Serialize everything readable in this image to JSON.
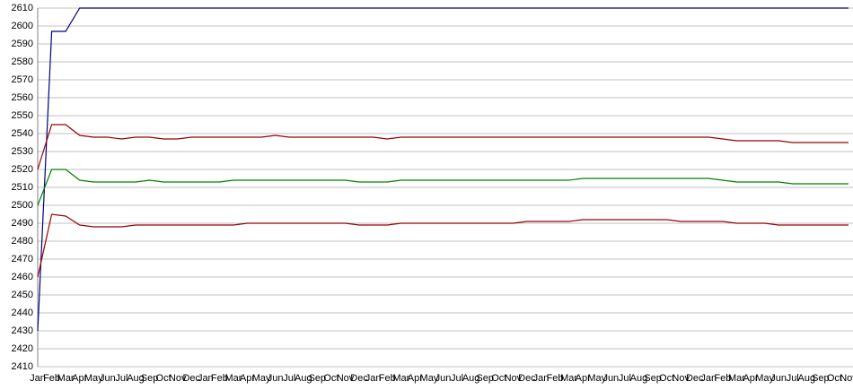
{
  "chart_data": {
    "type": "line",
    "categories": [
      "Jan",
      "Feb",
      "Mar",
      "Apr",
      "May",
      "Jun",
      "Jul",
      "Aug",
      "Sep",
      "Oct",
      "Nov",
      "Dec",
      "Jan",
      "Feb",
      "Mar",
      "Apr",
      "May",
      "Jun",
      "Jul",
      "Aug",
      "Sep",
      "Oct",
      "Nov",
      "Dec",
      "Jan",
      "Feb",
      "Mar",
      "Apr",
      "May",
      "Jun",
      "Jul",
      "Aug",
      "Sep",
      "Oct",
      "Nov",
      "Dec",
      "Jan",
      "Feb",
      "Mar",
      "Apr",
      "May",
      "Jun",
      "Jul",
      "Aug",
      "Sep",
      "Oct",
      "Nov",
      "Dec",
      "Jan",
      "Feb",
      "Mar",
      "Apr",
      "May",
      "Jun",
      "Jul",
      "Aug",
      "Sep",
      "Oct",
      "Nov"
    ],
    "series": [
      {
        "color": "#000080",
        "values": [
          2430,
          2597,
          2597,
          2610,
          2610,
          2610,
          2610,
          2610,
          2610,
          2610,
          2610,
          2610,
          2610,
          2610,
          2610,
          2610,
          2610,
          2610,
          2610,
          2610,
          2610,
          2610,
          2610,
          2610,
          2610,
          2610,
          2610,
          2610,
          2610,
          2610,
          2610,
          2610,
          2610,
          2610,
          2610,
          2610,
          2610,
          2610,
          2610,
          2610,
          2610,
          2610,
          2610,
          2610,
          2610,
          2610,
          2610,
          2610,
          2610,
          2610,
          2610,
          2610,
          2610,
          2610,
          2610,
          2610,
          2610,
          2610,
          2610
        ]
      },
      {
        "color": "#990000",
        "values": [
          2520,
          2545,
          2545,
          2539,
          2538,
          2538,
          2537,
          2538,
          2538,
          2537,
          2537,
          2538,
          2538,
          2538,
          2538,
          2538,
          2538,
          2539,
          2538,
          2538,
          2538,
          2538,
          2538,
          2538,
          2538,
          2537,
          2538,
          2538,
          2538,
          2538,
          2538,
          2538,
          2538,
          2538,
          2538,
          2538,
          2538,
          2538,
          2538,
          2538,
          2538,
          2538,
          2538,
          2538,
          2538,
          2538,
          2538,
          2538,
          2538,
          2537,
          2536,
          2536,
          2536,
          2536,
          2535,
          2535,
          2535,
          2535,
          2535
        ]
      },
      {
        "color": "#008000",
        "values": [
          2500,
          2520,
          2520,
          2514,
          2513,
          2513,
          2513,
          2513,
          2514,
          2513,
          2513,
          2513,
          2513,
          2513,
          2514,
          2514,
          2514,
          2514,
          2514,
          2514,
          2514,
          2514,
          2514,
          2513,
          2513,
          2513,
          2514,
          2514,
          2514,
          2514,
          2514,
          2514,
          2514,
          2514,
          2514,
          2514,
          2514,
          2514,
          2514,
          2515,
          2515,
          2515,
          2515,
          2515,
          2515,
          2515,
          2515,
          2515,
          2515,
          2514,
          2513,
          2513,
          2513,
          2513,
          2512,
          2512,
          2512,
          2512,
          2512
        ]
      },
      {
        "color": "#990000",
        "values": [
          2460,
          2495,
          2494,
          2489,
          2488,
          2488,
          2488,
          2489,
          2489,
          2489,
          2489,
          2489,
          2489,
          2489,
          2489,
          2490,
          2490,
          2490,
          2490,
          2490,
          2490,
          2490,
          2490,
          2489,
          2489,
          2489,
          2490,
          2490,
          2490,
          2490,
          2490,
          2490,
          2490,
          2490,
          2490,
          2491,
          2491,
          2491,
          2491,
          2492,
          2492,
          2492,
          2492,
          2492,
          2492,
          2492,
          2491,
          2491,
          2491,
          2491,
          2490,
          2490,
          2490,
          2489,
          2489,
          2489,
          2489,
          2489,
          2489
        ]
      }
    ],
    "ylim": [
      2410,
      2610
    ],
    "yticks": [
      2410,
      2420,
      2430,
      2440,
      2450,
      2460,
      2470,
      2480,
      2490,
      2500,
      2510,
      2520,
      2530,
      2540,
      2550,
      2560,
      2570,
      2580,
      2590,
      2600,
      2610
    ],
    "grid": true
  }
}
